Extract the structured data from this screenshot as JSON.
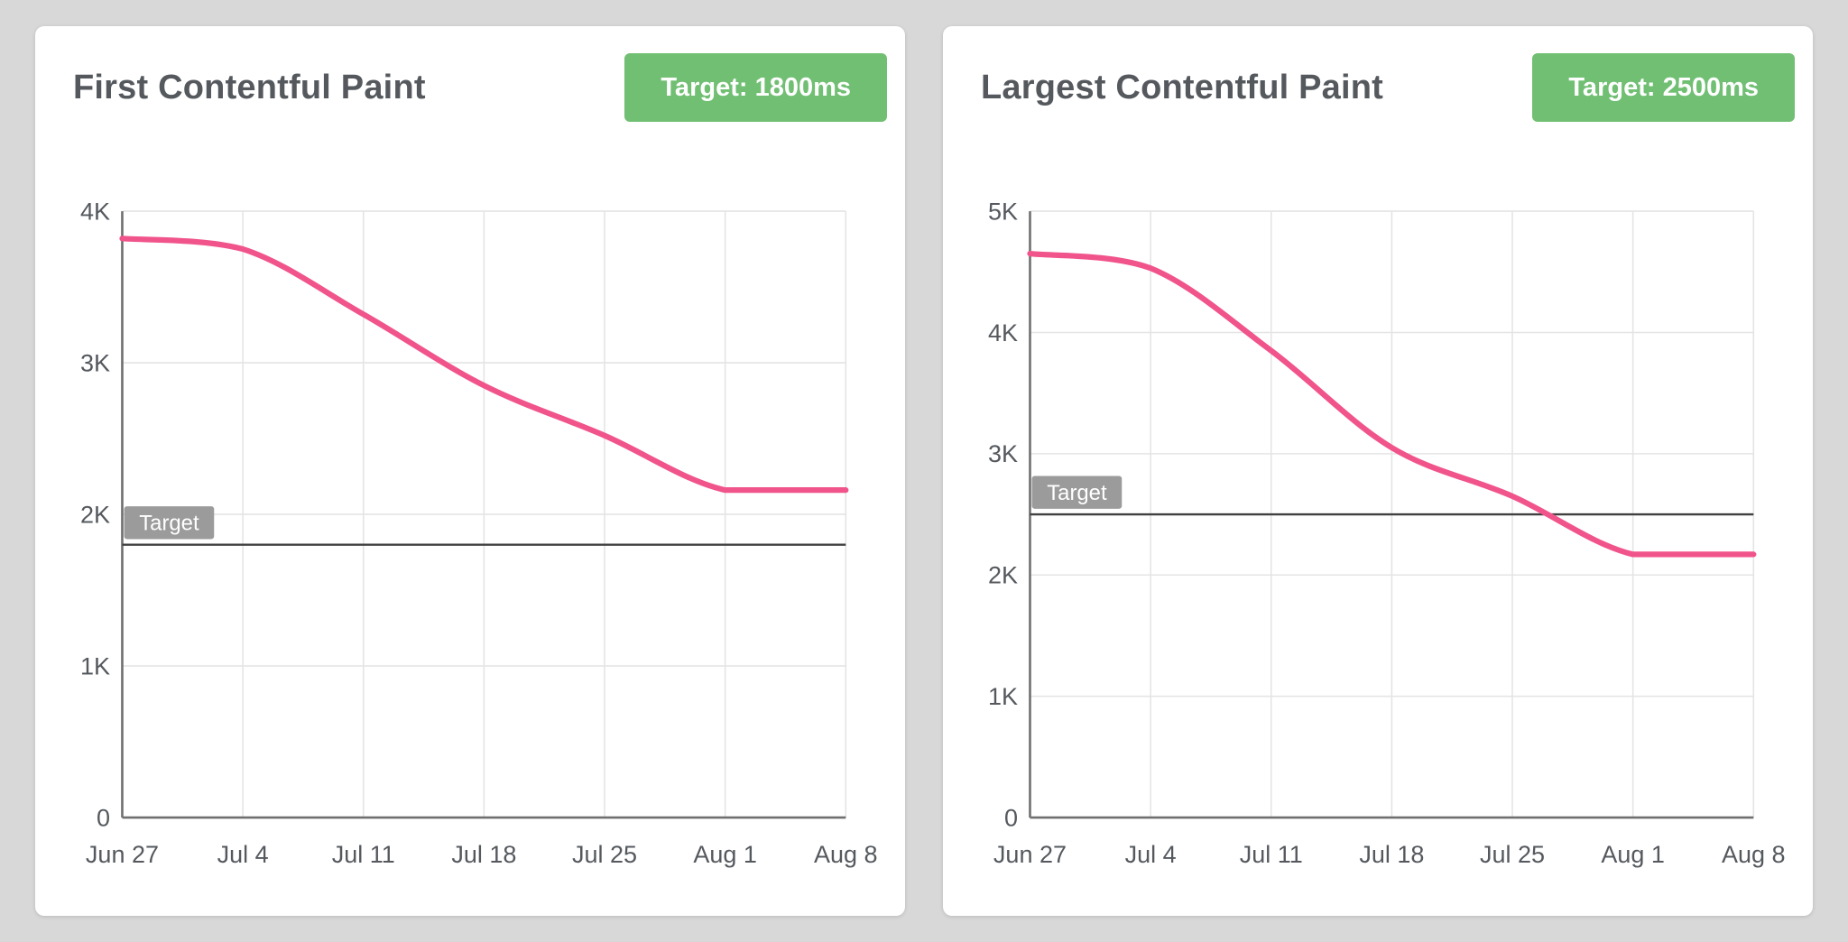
{
  "colors": {
    "page_background": "#d8d8d8",
    "card_background": "#ffffff",
    "title_text": "#55595e",
    "badge_background": "#70bf73",
    "badge_text": "#ffffff",
    "series_line": "#f0548b",
    "axis": "#6f6f6f",
    "grid": "#e4e4e4",
    "tick_text": "#55595e",
    "target_line": "#404040",
    "target_badge_background": "#9b9b9b",
    "target_badge_text": "#ffffff"
  },
  "chart_data": [
    {
      "type": "line",
      "title": "First Contentful Paint",
      "badge_label": "Target: 1800ms",
      "target_value": 1800,
      "target_label": "Target",
      "unit": "ms",
      "categories": [
        "Jun 27",
        "Jul 4",
        "Jul 11",
        "Jul 18",
        "Jul 25",
        "Aug 1",
        "Aug 8"
      ],
      "values": [
        3820,
        3750,
        3320,
        2850,
        2520,
        2160,
        2160
      ],
      "ylim": [
        0,
        4000
      ],
      "ytick_step": 1000,
      "yticks": [
        "0",
        "1K",
        "2K",
        "3K",
        "4K"
      ],
      "grid": true,
      "legend": "none"
    },
    {
      "type": "line",
      "title": "Largest Contentful Paint",
      "badge_label": "Target: 2500ms",
      "target_value": 2500,
      "target_label": "Target",
      "unit": "ms",
      "categories": [
        "Jun 27",
        "Jul 4",
        "Jul 11",
        "Jul 18",
        "Jul 25",
        "Aug 1",
        "Aug 8"
      ],
      "values": [
        4650,
        4530,
        3850,
        3050,
        2650,
        2170,
        2170
      ],
      "ylim": [
        0,
        5000
      ],
      "ytick_step": 1000,
      "yticks": [
        "0",
        "1K",
        "2K",
        "3K",
        "4K",
        "5K"
      ],
      "grid": true,
      "legend": "none"
    }
  ]
}
